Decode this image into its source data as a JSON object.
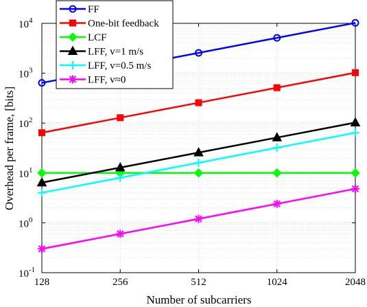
{
  "chart_data": {
    "type": "line",
    "xscale": "log2",
    "yscale": "log10",
    "x": [
      128,
      256,
      512,
      1024,
      2048
    ],
    "xticks": [
      "128",
      "256",
      "512",
      "1024",
      "2048"
    ],
    "yticks": [
      {
        "base": "10",
        "exp": "-1",
        "value": 0.1
      },
      {
        "base": "10",
        "exp": "0",
        "value": 1
      },
      {
        "base": "10",
        "exp": "1",
        "value": 10
      },
      {
        "base": "10",
        "exp": "2",
        "value": 100
      },
      {
        "base": "10",
        "exp": "3",
        "value": 1000
      },
      {
        "base": "10",
        "exp": "4",
        "value": 10000
      }
    ],
    "xlim": [
      128,
      2048
    ],
    "ylim": [
      0.1,
      10000
    ],
    "xlabel": "Number of subcarriers",
    "ylabel": "Overhead per frame, [bits]",
    "grid": true,
    "legend_position": "top-left",
    "series": [
      {
        "name": "FF",
        "color": "#0000ff",
        "marker": "circle",
        "values": [
          640,
          1280,
          2560,
          5120,
          10240
        ]
      },
      {
        "name": "One-bit feedback",
        "color": "#ff0000",
        "marker": "square",
        "values": [
          64,
          128,
          256,
          512,
          1024
        ]
      },
      {
        "name": "LCF",
        "color": "#00ff00",
        "marker": "diamond",
        "values": [
          10,
          10,
          10,
          10,
          10
        ]
      },
      {
        "name": "LFF, v=1 m/s",
        "color": "#000000",
        "marker": "triangle",
        "values": [
          6.4,
          12.8,
          25.6,
          51.2,
          102.4
        ]
      },
      {
        "name": "LFF, v=0.5 m/s",
        "color": "#00ffff",
        "marker": "plus",
        "values": [
          4,
          8,
          16,
          32,
          64
        ]
      },
      {
        "name": "LFF, v≈0",
        "color": "#ff00ff",
        "marker": "asterisk",
        "values": [
          0.3,
          0.6,
          1.2,
          2.4,
          4.8
        ]
      }
    ]
  }
}
